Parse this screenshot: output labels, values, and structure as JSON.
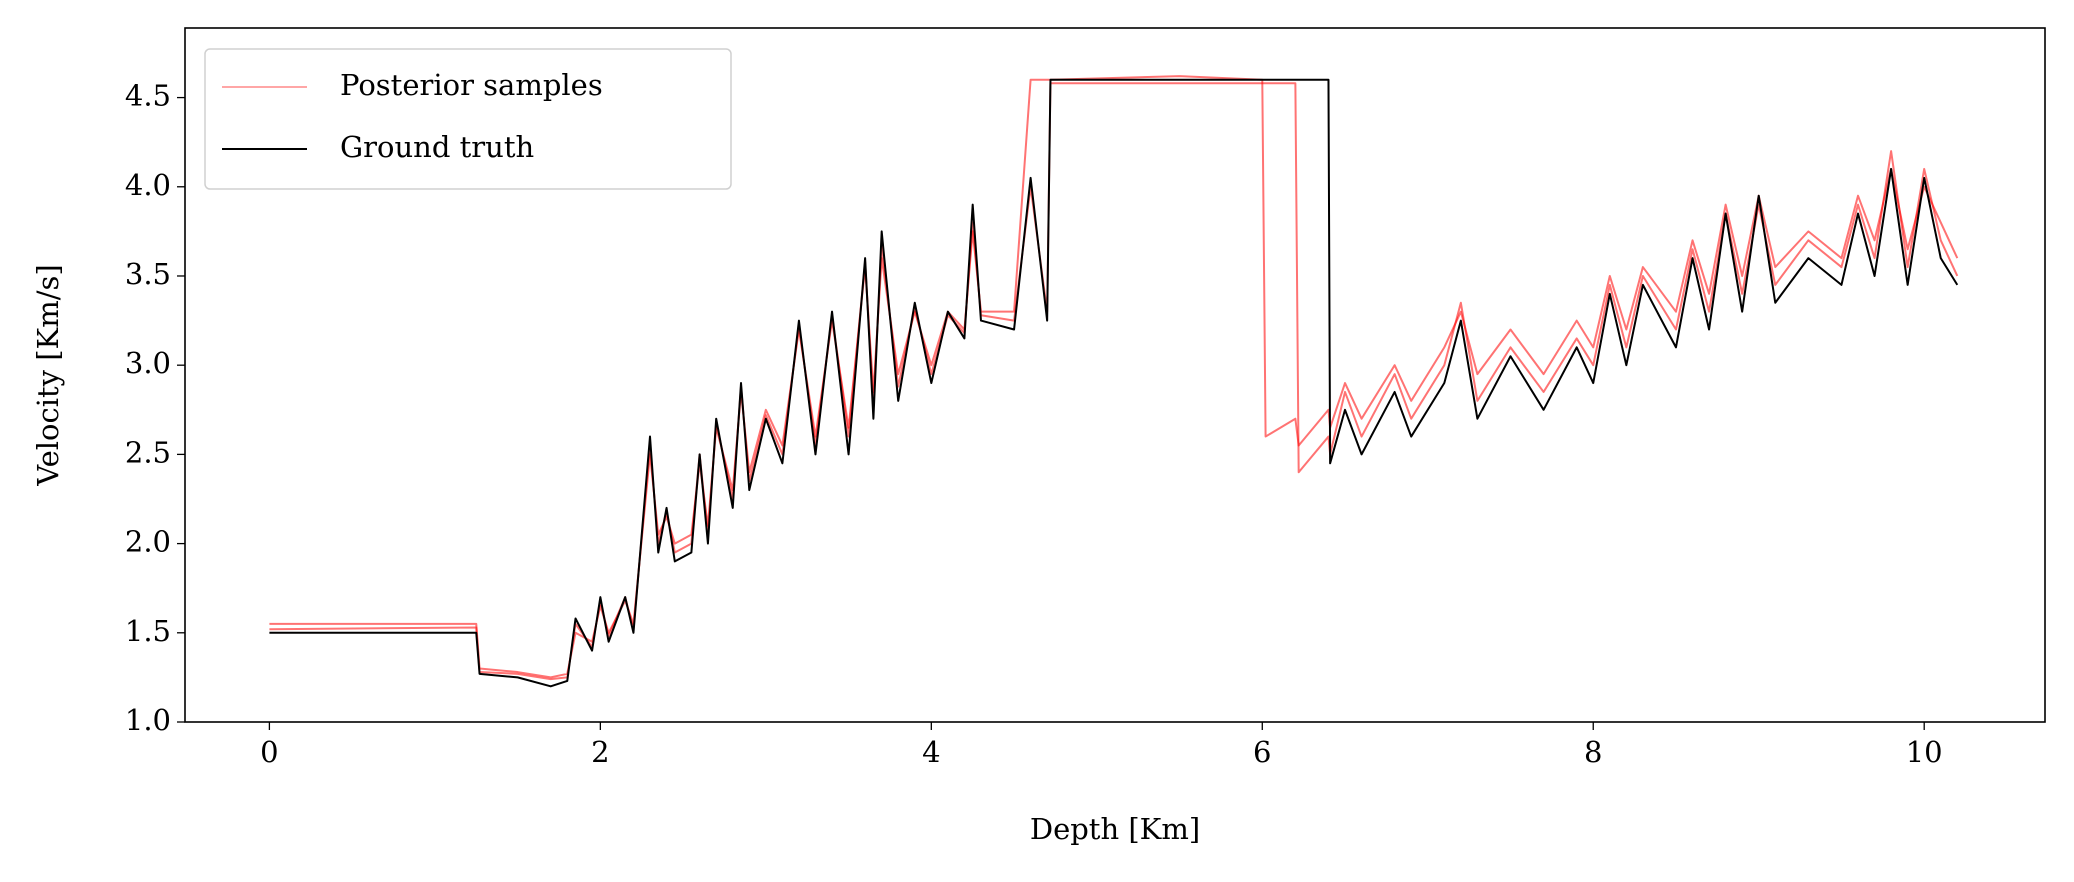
{
  "chart_data": {
    "type": "line",
    "xlabel": "Depth [Km]",
    "ylabel": "Velocity [Km/s]",
    "x": [
      0,
      1.25,
      1.27,
      1.5,
      1.7,
      1.8,
      1.85,
      1.95,
      2.0,
      2.05,
      2.15,
      2.2,
      2.3,
      2.35,
      2.4,
      2.45,
      2.55,
      2.6,
      2.65,
      2.7,
      2.8,
      2.85,
      2.9,
      3.0,
      3.1,
      3.2,
      3.3,
      3.4,
      3.5,
      3.6,
      3.65,
      3.7,
      3.8,
      3.9,
      4.0,
      4.1,
      4.2,
      4.25,
      4.3,
      4.5,
      4.6,
      4.7,
      4.72,
      5.5,
      6.0,
      6.02,
      6.2,
      6.22,
      6.4,
      6.41,
      6.5,
      6.6,
      6.8,
      6.9,
      7.1,
      7.2,
      7.3,
      7.5,
      7.7,
      7.9,
      8.0,
      8.1,
      8.2,
      8.3,
      8.5,
      8.6,
      8.7,
      8.8,
      8.9,
      9.0,
      9.1,
      9.3,
      9.5,
      9.6,
      9.7,
      9.8,
      9.9,
      10.0,
      10.1,
      10.2
    ],
    "series": [
      {
        "name": "Posterior samples",
        "color": "#ff0000",
        "values": [
          [
            1.55,
            1.55,
            1.3,
            1.28,
            1.25,
            1.27,
            1.5,
            1.45,
            1.65,
            1.5,
            1.68,
            1.55,
            2.5,
            2.05,
            2.15,
            2.0,
            2.05,
            2.45,
            2.1,
            2.65,
            2.3,
            2.85,
            2.4,
            2.75,
            2.55,
            3.2,
            2.6,
            3.25,
            2.65,
            3.55,
            2.85,
            3.6,
            2.95,
            3.3,
            3.0,
            3.3,
            3.2,
            3.75,
            3.3,
            3.3,
            4.6,
            4.6,
            4.6,
            4.62,
            4.6,
            2.6,
            2.7,
            2.55,
            2.75,
            2.65,
            2.9,
            2.7,
            3.0,
            2.8,
            3.1,
            3.3,
            2.95,
            3.2,
            2.95,
            3.25,
            3.1,
            3.5,
            3.2,
            3.55,
            3.3,
            3.7,
            3.4,
            3.9,
            3.5,
            3.95,
            3.55,
            3.75,
            3.6,
            3.95,
            3.7,
            4.1,
            3.65,
            4.0,
            3.8,
            3.6
          ],
          [
            1.52,
            1.53,
            1.28,
            1.27,
            1.24,
            1.25,
            1.55,
            1.42,
            1.68,
            1.48,
            1.7,
            1.52,
            2.55,
            2.0,
            2.18,
            1.95,
            2.0,
            2.5,
            2.05,
            2.68,
            2.25,
            2.88,
            2.35,
            2.72,
            2.5,
            3.22,
            2.55,
            3.28,
            2.6,
            3.58,
            2.78,
            3.68,
            2.88,
            3.32,
            2.95,
            3.28,
            3.18,
            3.8,
            3.28,
            3.25,
            4.0,
            3.3,
            4.58,
            4.58,
            4.58,
            4.58,
            4.58,
            2.4,
            2.6,
            2.5,
            2.85,
            2.6,
            2.95,
            2.7,
            3.0,
            3.35,
            2.8,
            3.1,
            2.85,
            3.15,
            3.0,
            3.45,
            3.1,
            3.5,
            3.2,
            3.65,
            3.3,
            3.85,
            3.4,
            3.9,
            3.45,
            3.7,
            3.55,
            3.9,
            3.6,
            4.2,
            3.55,
            4.1,
            3.7,
            3.5
          ]
        ]
      },
      {
        "name": "Ground truth",
        "color": "#000000",
        "values": [
          1.5,
          1.5,
          1.27,
          1.25,
          1.2,
          1.23,
          1.58,
          1.4,
          1.7,
          1.45,
          1.7,
          1.5,
          2.6,
          1.95,
          2.2,
          1.9,
          1.95,
          2.5,
          2.0,
          2.7,
          2.2,
          2.9,
          2.3,
          2.7,
          2.45,
          3.25,
          2.5,
          3.3,
          2.5,
          3.6,
          2.7,
          3.75,
          2.8,
          3.35,
          2.9,
          3.3,
          3.15,
          3.9,
          3.25,
          3.2,
          4.05,
          3.25,
          4.6,
          4.6,
          4.6,
          4.6,
          4.6,
          4.6,
          4.6,
          2.45,
          2.75,
          2.5,
          2.85,
          2.6,
          2.9,
          3.25,
          2.7,
          3.05,
          2.75,
          3.1,
          2.9,
          3.4,
          3.0,
          3.45,
          3.1,
          3.6,
          3.2,
          3.85,
          3.3,
          3.95,
          3.35,
          3.6,
          3.45,
          3.85,
          3.5,
          4.1,
          3.45,
          4.05,
          3.6,
          3.45
        ]
      }
    ],
    "xlim": [
      -0.51,
      10.73
    ],
    "xticks": [
      0,
      2,
      4,
      6,
      8,
      10
    ],
    "ylim": [
      1.0,
      4.89
    ],
    "yticks": [
      {
        "value": 1,
        "label": "1.0"
      },
      1.5,
      {
        "value": 2,
        "label": "2.0"
      },
      2.5,
      {
        "value": 3,
        "label": "3.0"
      },
      3.5,
      {
        "value": 4,
        "label": "4.0"
      },
      4.5
    ],
    "legend": "upper left",
    "grid": false
  }
}
